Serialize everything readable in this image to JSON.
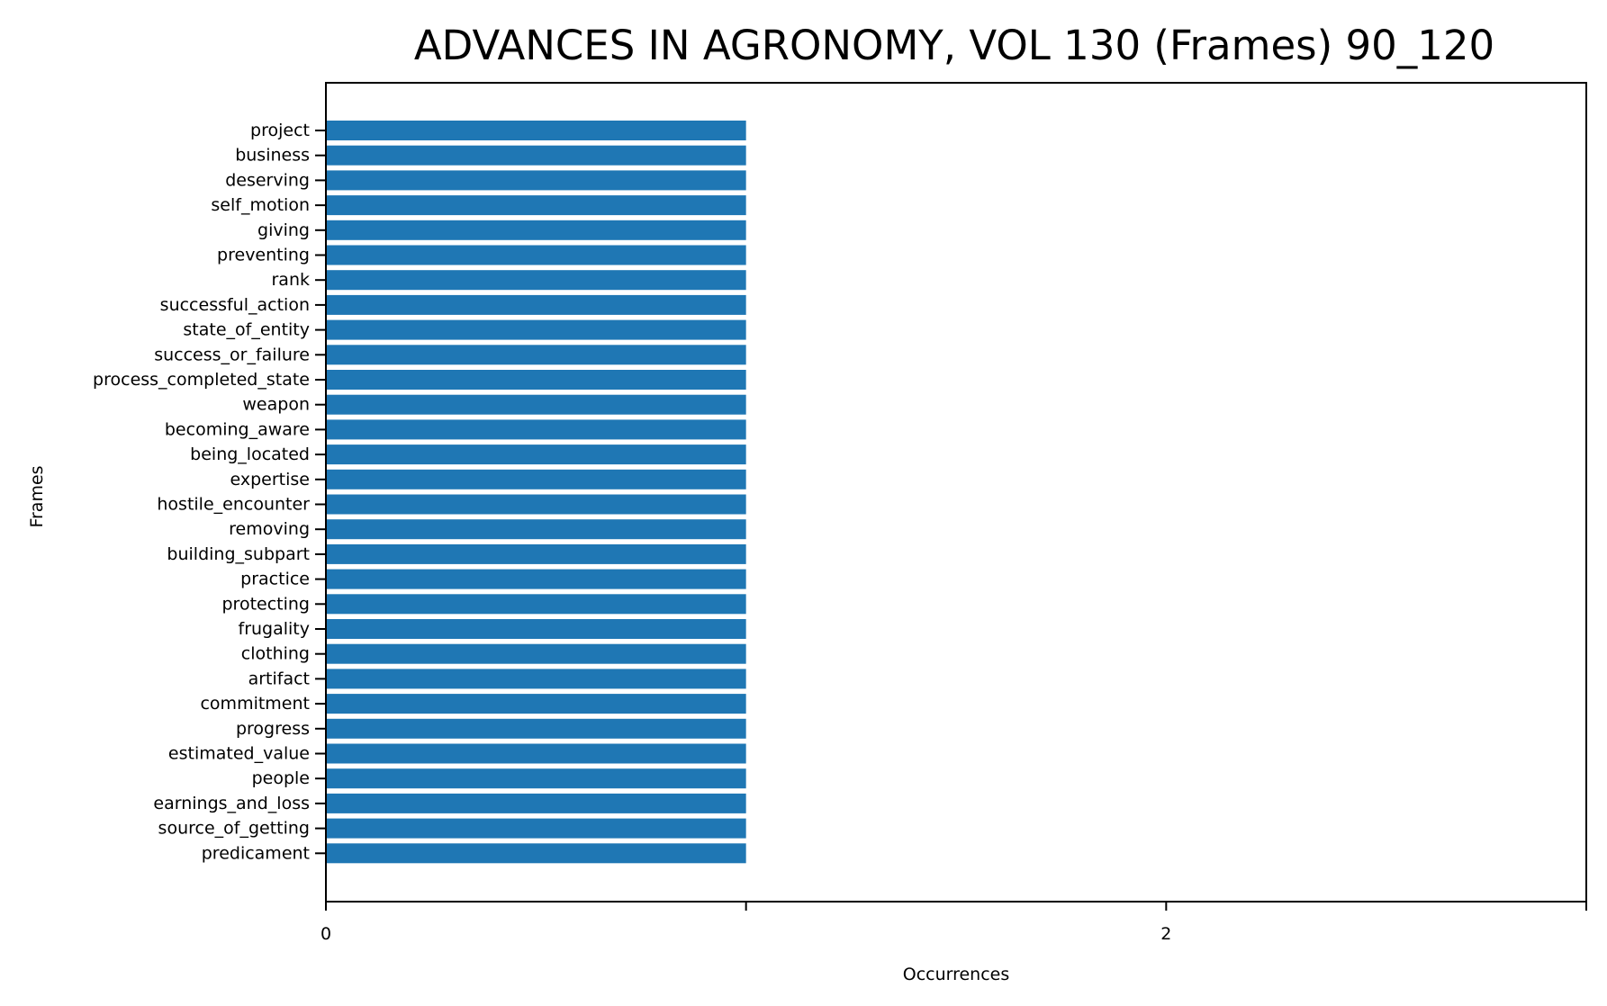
{
  "chart_data": {
    "type": "bar",
    "orientation": "horizontal",
    "title": "ADVANCES IN AGRONOMY, VOL 130 (Frames) 90_120",
    "xlabel": "Occurrences",
    "ylabel": "Frames",
    "xlim": [
      0,
      3
    ],
    "xticks": [
      0,
      1,
      2,
      3
    ],
    "xtick_labels": [
      "0",
      "",
      "2",
      ""
    ],
    "grid": false,
    "legend": "none",
    "bar_color": "#1f77b4",
    "categories": [
      "project",
      "business",
      "deserving",
      "self_motion",
      "giving",
      "preventing",
      "rank",
      "successful_action",
      "state_of_entity",
      "success_or_failure",
      "process_completed_state",
      "weapon",
      "becoming_aware",
      "being_located",
      "expertise",
      "hostile_encounter",
      "removing",
      "building_subpart",
      "practice",
      "protecting",
      "frugality",
      "clothing",
      "artifact",
      "commitment",
      "progress",
      "estimated_value",
      "people",
      "earnings_and_loss",
      "source_of_getting",
      "predicament"
    ],
    "values": [
      1,
      1,
      1,
      1,
      1,
      1,
      1,
      1,
      1,
      1,
      1,
      1,
      1,
      1,
      1,
      1,
      1,
      1,
      1,
      1,
      1,
      1,
      1,
      1,
      1,
      1,
      1,
      1,
      1,
      1
    ]
  }
}
